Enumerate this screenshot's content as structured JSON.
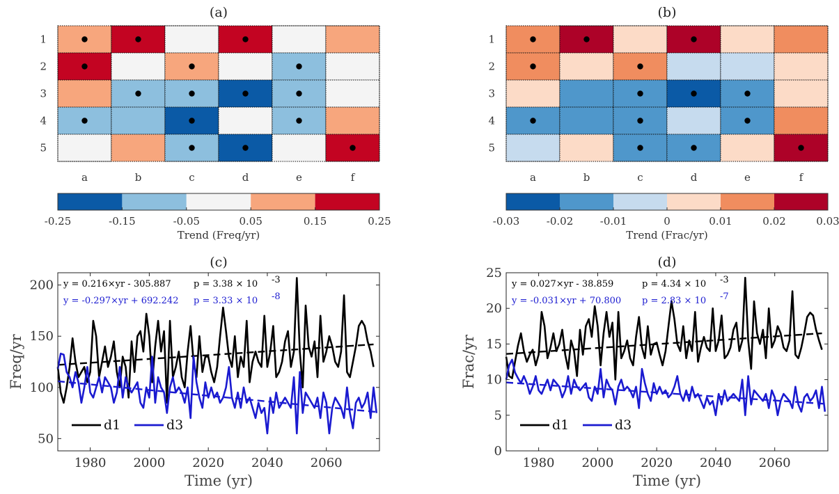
{
  "chart_data": [
    {
      "type": "heatmap",
      "title": "(a)",
      "rows": [
        "1",
        "2",
        "3",
        "4",
        "5"
      ],
      "cols": [
        "a",
        "b",
        "c",
        "d",
        "e",
        "f"
      ],
      "values": [
        [
          0.1,
          0.2,
          0.0,
          0.2,
          0.0,
          0.1
        ],
        [
          0.2,
          0.0,
          0.1,
          0.0,
          -0.1,
          0.0
        ],
        [
          0.1,
          -0.1,
          -0.1,
          -0.2,
          -0.1,
          0.0
        ],
        [
          -0.1,
          -0.1,
          -0.2,
          0.0,
          -0.1,
          0.1
        ],
        [
          0.0,
          0.1,
          -0.1,
          -0.2,
          0.0,
          0.2
        ]
      ],
      "significant": [
        [
          1,
          1,
          0,
          1,
          0,
          0
        ],
        [
          1,
          0,
          1,
          0,
          1,
          0
        ],
        [
          0,
          1,
          1,
          1,
          1,
          0
        ],
        [
          1,
          0,
          1,
          0,
          1,
          0
        ],
        [
          0,
          0,
          1,
          1,
          0,
          1
        ]
      ],
      "colorbar": {
        "bounds": [
          -0.25,
          -0.15,
          -0.05,
          0.05,
          0.15,
          0.25
        ],
        "tick_labels": [
          "-0.25",
          "-0.15",
          "-0.05",
          "0.05",
          "0.15",
          "0.25"
        ],
        "colors": [
          "#0b5aa6",
          "#8dbfde",
          "#f4f4f4",
          "#f7a67d",
          "#c30422"
        ],
        "label": "Trend (Freq/yr)"
      }
    },
    {
      "type": "heatmap",
      "title": "(b)",
      "rows": [
        "1",
        "2",
        "3",
        "4",
        "5"
      ],
      "cols": [
        "a",
        "b",
        "c",
        "d",
        "e",
        "f"
      ],
      "values": [
        [
          0.015,
          0.025,
          0.005,
          0.025,
          0.005,
          0.015
        ],
        [
          0.015,
          0.005,
          0.015,
          -0.005,
          -0.005,
          0.005
        ],
        [
          0.005,
          -0.015,
          -0.015,
          -0.025,
          -0.015,
          0.005
        ],
        [
          -0.015,
          -0.015,
          -0.015,
          -0.005,
          -0.015,
          0.015
        ],
        [
          -0.005,
          0.005,
          -0.015,
          -0.015,
          0.005,
          0.025
        ]
      ],
      "significant": [
        [
          1,
          1,
          0,
          1,
          0,
          0
        ],
        [
          1,
          0,
          1,
          0,
          0,
          0
        ],
        [
          0,
          0,
          1,
          1,
          1,
          0
        ],
        [
          1,
          0,
          1,
          0,
          1,
          0
        ],
        [
          0,
          0,
          1,
          1,
          0,
          1
        ]
      ],
      "colorbar": {
        "bounds": [
          -0.03,
          -0.02,
          -0.01,
          0,
          0.01,
          0.02,
          0.03
        ],
        "tick_labels": [
          "-0.03",
          "-0.02",
          "-0.01",
          "0",
          "0.01",
          "0.02",
          "0.03"
        ],
        "colors": [
          "#0b5aa6",
          "#4f97cb",
          "#c6dbee",
          "#fcdbc7",
          "#f08d5f",
          "#ad0228"
        ],
        "label": "Trend (Frac/yr)"
      }
    },
    {
      "type": "line",
      "title": "(c)",
      "xlabel": "Time (yr)",
      "ylabel": "Freq/yr",
      "xlim": [
        1969,
        2078
      ],
      "ylim": [
        38,
        212
      ],
      "xticks": [
        1980,
        2000,
        2020,
        2040,
        2060
      ],
      "yticks": [
        50,
        100,
        150,
        200
      ],
      "series": [
        {
          "name": "d1",
          "color": "#000000",
          "x_start": 1969,
          "x_step": 1,
          "values": [
            120,
            95,
            85,
            100,
            120,
            148,
            125,
            110,
            115,
            120,
            105,
            115,
            165,
            150,
            110,
            125,
            140,
            120,
            130,
            145,
            115,
            100,
            130,
            120,
            90,
            145,
            115,
            150,
            155,
            135,
            172,
            150,
            105,
            140,
            165,
            135,
            155,
            85,
            165,
            110,
            120,
            135,
            110,
            100,
            135,
            160,
            125,
            110,
            150,
            115,
            130,
            130,
            115,
            105,
            120,
            150,
            178,
            155,
            130,
            120,
            150,
            110,
            130,
            120,
            165,
            105,
            125,
            135,
            125,
            120,
            170,
            120,
            135,
            160,
            110,
            115,
            125,
            145,
            155,
            120,
            135,
            207,
            135,
            100,
            180,
            140,
            130,
            145,
            110,
            170,
            125,
            135,
            150,
            140,
            125,
            120,
            135,
            190,
            115,
            110,
            125,
            140,
            160,
            165,
            160,
            145,
            135,
            120
          ],
          "trend": {
            "start": 122,
            "end": 142
          },
          "annotation": "y = 0.216×yr - 305.887",
          "p_value": "p = 3.38 × 10",
          "p_exp": "-3"
        },
        {
          "name": "d3",
          "color": "#1a1ad0",
          "x_start": 1969,
          "x_step": 1,
          "values": [
            118,
            133,
            132,
            115,
            110,
            100,
            115,
            105,
            85,
            100,
            120,
            95,
            90,
            100,
            110,
            95,
            110,
            105,
            100,
            85,
            95,
            120,
            90,
            110,
            100,
            95,
            100,
            105,
            85,
            80,
            100,
            90,
            130,
            85,
            110,
            100,
            95,
            75,
            100,
            110,
            95,
            100,
            95,
            85,
            100,
            70,
            130,
            105,
            90,
            80,
            105,
            90,
            100,
            90,
            95,
            85,
            90,
            100,
            120,
            90,
            80,
            95,
            80,
            100,
            85,
            90,
            80,
            70,
            85,
            75,
            80,
            55,
            90,
            75,
            95,
            80,
            85,
            90,
            85,
            80,
            110,
            55,
            115,
            75,
            95,
            90,
            85,
            80,
            90,
            70,
            95,
            85,
            55,
            80,
            90,
            85,
            80,
            70,
            100,
            75,
            60,
            85,
            90,
            80,
            85,
            95,
            70,
            100,
            75
          ],
          "trend": {
            "start": 106,
            "end": 76
          },
          "annotation": "y = -0.297×yr + 692.242",
          "p_value": "p = 3.33 × 10",
          "p_exp": "-8"
        }
      ]
    },
    {
      "type": "line",
      "title": "(d)",
      "xlabel": "Time (yr)",
      "ylabel": "Frac/yr",
      "xlim": [
        1969,
        2078
      ],
      "ylim": [
        0,
        25
      ],
      "xticks": [
        1980,
        2000,
        2020,
        2040,
        2060
      ],
      "yticks": [
        0,
        5,
        10,
        15,
        20,
        25
      ],
      "series": [
        {
          "name": "d1",
          "color": "#000000",
          "x_start": 1969,
          "x_step": 1,
          "values": [
            13.2,
            10.5,
            10.2,
            12.5,
            14.8,
            16.5,
            14.0,
            12.5,
            13.5,
            14.2,
            12.0,
            13.5,
            19.5,
            17.5,
            13.0,
            14.5,
            16.5,
            14.0,
            15.0,
            17.0,
            13.5,
            11.5,
            15.5,
            14.0,
            10.5,
            17.0,
            13.5,
            17.5,
            18.5,
            16.0,
            20.3,
            17.5,
            12.0,
            16.5,
            19.5,
            16.0,
            18.0,
            10.0,
            19.5,
            13.0,
            14.0,
            15.5,
            13.0,
            12.0,
            16.0,
            18.8,
            14.5,
            13.0,
            17.5,
            13.5,
            15.0,
            15.2,
            13.5,
            12.0,
            14.0,
            17.5,
            21.0,
            18.5,
            15.0,
            14.0,
            17.5,
            13.0,
            15.5,
            14.0,
            19.5,
            12.5,
            14.5,
            16.0,
            14.5,
            14.0,
            20.0,
            14.0,
            15.5,
            19.0,
            13.0,
            13.5,
            14.5,
            17.0,
            18.0,
            14.0,
            15.5,
            24.3,
            15.5,
            11.5,
            21.0,
            16.5,
            15.0,
            17.0,
            13.0,
            20.0,
            14.5,
            15.5,
            17.5,
            16.5,
            14.5,
            14.0,
            15.5,
            22.4,
            13.5,
            13.0,
            14.5,
            16.5,
            18.8,
            19.4,
            19.0,
            17.0,
            15.5,
            14.2
          ],
          "trend": {
            "start": 13.6,
            "end": 16.5
          },
          "annotation": "y = 0.027×yr - 38.859",
          "p_value": "p = 4.34 × 10",
          "p_exp": "-3"
        },
        {
          "name": "d3",
          "color": "#1a1ad0",
          "x_start": 1969,
          "x_step": 1,
          "values": [
            10.0,
            12.0,
            12.8,
            11.0,
            10.2,
            9.5,
            10.5,
            9.5,
            8.0,
            9.0,
            10.5,
            8.5,
            8.0,
            9.0,
            10.0,
            8.5,
            10.0,
            9.5,
            9.0,
            7.5,
            8.5,
            10.5,
            8.0,
            10.0,
            9.0,
            8.5,
            9.0,
            9.5,
            7.5,
            7.0,
            9.0,
            8.0,
            11.5,
            7.5,
            10.0,
            9.0,
            8.5,
            6.5,
            9.0,
            10.0,
            8.5,
            9.0,
            8.5,
            7.5,
            9.0,
            6.0,
            11.5,
            9.5,
            8.0,
            7.0,
            9.5,
            8.0,
            9.0,
            8.0,
            8.5,
            7.5,
            8.0,
            9.0,
            10.5,
            8.0,
            7.0,
            8.5,
            7.0,
            9.0,
            7.5,
            8.0,
            7.0,
            6.0,
            7.5,
            6.5,
            7.0,
            5.0,
            8.0,
            6.5,
            8.5,
            7.0,
            7.5,
            8.0,
            7.5,
            7.0,
            10.0,
            5.0,
            10.5,
            6.5,
            8.5,
            8.0,
            7.5,
            7.0,
            8.0,
            6.0,
            8.5,
            7.5,
            5.0,
            7.0,
            8.0,
            7.5,
            7.0,
            6.0,
            9.0,
            6.5,
            5.5,
            7.5,
            8.0,
            7.0,
            7.5,
            8.5,
            6.0,
            9.0,
            5.5
          ],
          "trend": {
            "start": 9.6,
            "end": 6.6
          },
          "annotation": "y = -0.031×yr + 70.800",
          "p_value": "p = 2.83 × 10",
          "p_exp": "-7"
        }
      ]
    }
  ]
}
